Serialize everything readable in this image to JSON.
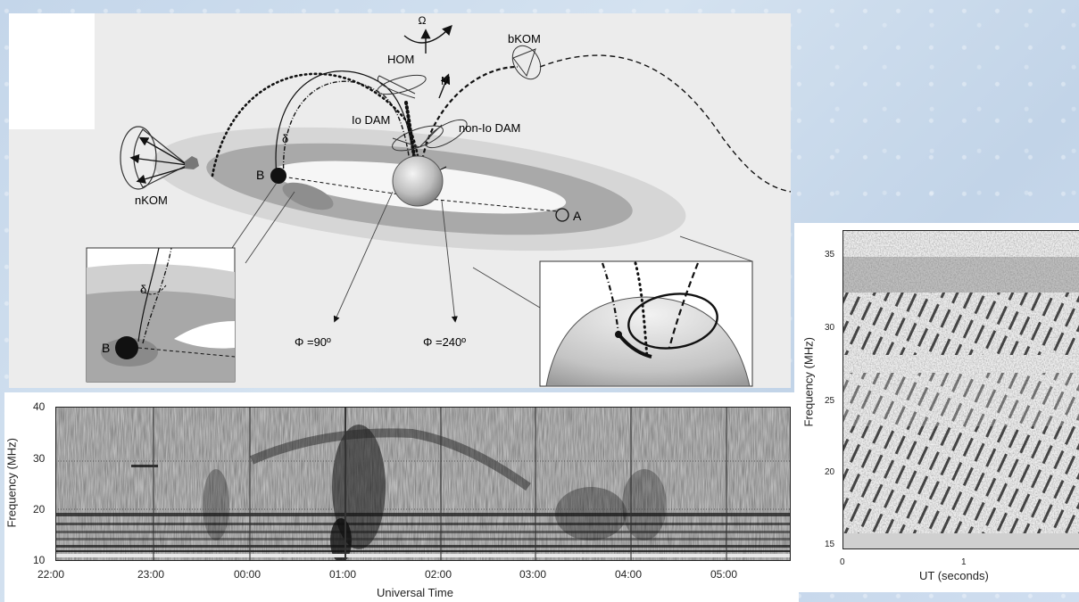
{
  "diagram": {
    "labels": {
      "omega": "Ω",
      "hom": "HOM",
      "bkom": "bKOM",
      "m": "M",
      "io_dam": "Io DAM",
      "non_io_dam": "non-Io DAM",
      "nkom": "nKOM",
      "delta": "δ",
      "b": "B",
      "a": "A",
      "phi90": "Φ =90º",
      "phi240": "Φ =240º",
      "inset_delta": "δ",
      "inset_b": "B"
    }
  },
  "spectrogram_left": {
    "ylabel": "Frequency (MHz)",
    "xlabel": "Universal Time",
    "yticks": [
      "40",
      "30",
      "20",
      "10"
    ],
    "xticks": [
      "22:00",
      "23:00",
      "00:00",
      "01:00",
      "02:00",
      "03:00",
      "04:00",
      "05:00"
    ]
  },
  "spectrogram_right": {
    "ylabel": "Frequency (MHz)",
    "xlabel": "UT (seconds)",
    "yticks": [
      "35",
      "30",
      "25",
      "20",
      "15"
    ],
    "xticks": [
      "0",
      "1"
    ]
  },
  "colors": {
    "ink": "#111111",
    "ring_light": "#d8d8d8",
    "ring_dark": "#a8a8a8",
    "panel_bg": "#ffffff"
  }
}
